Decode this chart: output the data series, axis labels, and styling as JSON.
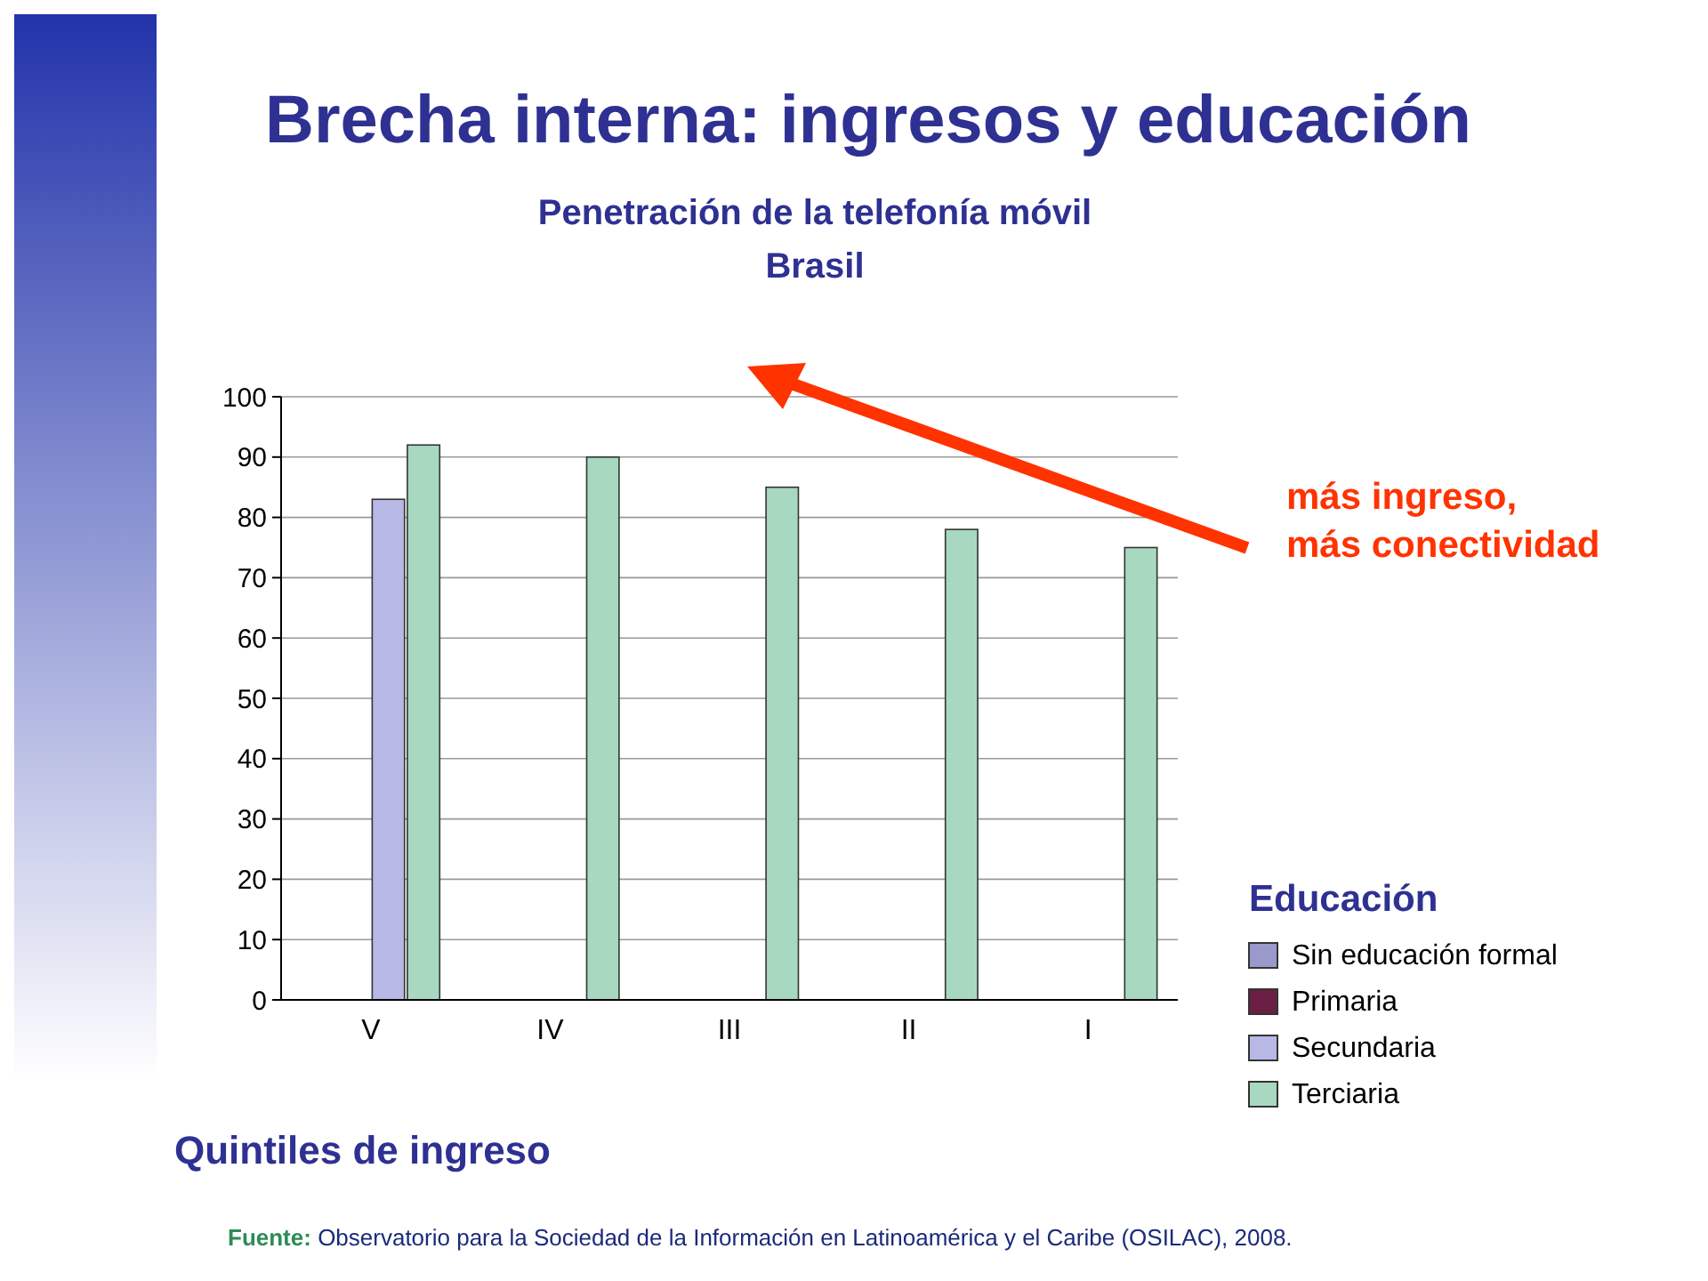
{
  "chart_data": {
    "type": "bar",
    "title": "Brecha interna: ingresos y educación",
    "subtitle": "Penetración de la telefonía móvil\nBrasil",
    "xlabel": "Quintiles de ingreso",
    "legend_title": "Educación",
    "categories": [
      "V",
      "IV",
      "III",
      "II",
      "I"
    ],
    "series": [
      {
        "name": "Sin educación formal",
        "color": "#9999cc",
        "values": [
          0,
          0,
          0,
          0,
          0
        ]
      },
      {
        "name": "Primaria",
        "color": "#6b1f45",
        "values": [
          0,
          0,
          0,
          0,
          0
        ]
      },
      {
        "name": "Secundaria",
        "color": "#b8b8e6",
        "values": [
          83,
          0,
          0,
          0,
          0
        ]
      },
      {
        "name": "Terciaria",
        "color": "#a8d8c0",
        "values": [
          92,
          90,
          85,
          78,
          75
        ]
      }
    ],
    "ylim": [
      0,
      100
    ],
    "yticks": [
      0,
      10,
      20,
      30,
      40,
      50,
      60,
      70,
      80,
      90,
      100
    ],
    "grid": "y",
    "legend": "right",
    "annotations": [
      "más ingreso, más conectividad",
      "Fuente: Observatorio para la Sociedad de la Información en Latinoamérica y el Caribe (OSILAC), 2008."
    ]
  }
}
